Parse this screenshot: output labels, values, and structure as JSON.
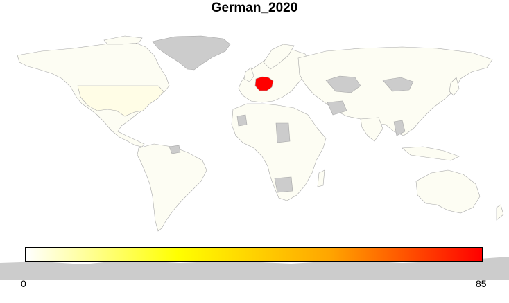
{
  "title": "German_2020",
  "legend": {
    "min_label": "0",
    "max_label": "85",
    "min": 0,
    "max": 85,
    "colors": [
      "#ffffff",
      "#ffff00",
      "#ffa500",
      "#ff0000"
    ]
  },
  "colors": {
    "land_default": "#fdfdf3",
    "land_no_data": "#cccccc",
    "border": "#a8a8a8",
    "highlight": "#ff0000",
    "usa": "#fffde6"
  },
  "regions": [
    {
      "name": "Germany",
      "value": 85
    },
    {
      "name": "United States",
      "value": 2
    }
  ]
}
